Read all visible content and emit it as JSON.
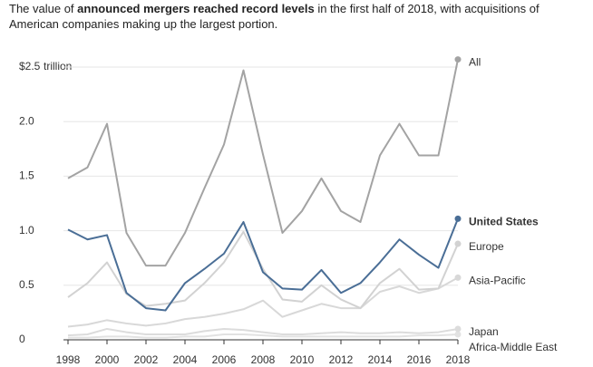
{
  "chart_data": {
    "type": "line",
    "title": [
      "The value of ",
      "announced mergers reached record levels",
      " in the first half of 2018, with acquisitions of American companies making up the largest portion."
    ],
    "y_unit": "trillion",
    "x": [
      1998,
      1999,
      2000,
      2001,
      2002,
      2003,
      2004,
      2005,
      2006,
      2007,
      2008,
      2009,
      2010,
      2011,
      2012,
      2013,
      2014,
      2015,
      2016,
      2017,
      2018
    ],
    "xlim": [
      1998,
      2018
    ],
    "xticks": [
      1998,
      2000,
      2002,
      2004,
      2006,
      2008,
      2010,
      2012,
      2014,
      2016,
      2018
    ],
    "ylim": [
      0,
      2.5
    ],
    "yticks": [
      0,
      0.5,
      {
        "value": 1,
        "label": "1.0"
      },
      1.5,
      {
        "value": 2,
        "label": "2.0"
      },
      {
        "value": 2.5,
        "label": "$2.5"
      }
    ],
    "grid": true,
    "series": [
      {
        "name": "All",
        "color": "#a3a3a3",
        "values": [
          1.48,
          1.58,
          1.98,
          0.98,
          0.68,
          0.68,
          0.98,
          1.39,
          1.79,
          2.47,
          1.7,
          0.98,
          1.18,
          1.48,
          1.18,
          1.08,
          1.69,
          1.98,
          1.69,
          1.69,
          2.57
        ]
      },
      {
        "name": "United States",
        "color": "#4a6e96",
        "bold": true,
        "values": [
          1.01,
          0.92,
          0.96,
          0.43,
          0.29,
          0.27,
          0.52,
          0.65,
          0.79,
          1.08,
          0.62,
          0.47,
          0.46,
          0.64,
          0.43,
          0.52,
          0.71,
          0.92,
          0.78,
          0.66,
          1.11
        ]
      },
      {
        "name": "Europe",
        "color": "#d2d2d2",
        "values": [
          0.39,
          0.52,
          0.71,
          0.42,
          0.31,
          0.33,
          0.36,
          0.52,
          0.71,
          0.99,
          0.65,
          0.37,
          0.35,
          0.5,
          0.37,
          0.29,
          0.52,
          0.65,
          0.46,
          0.47,
          0.88
        ]
      },
      {
        "name": "Asia-Pacific",
        "color": "#d8d8d8",
        "values": [
          0.12,
          0.14,
          0.18,
          0.15,
          0.13,
          0.15,
          0.19,
          0.21,
          0.24,
          0.28,
          0.36,
          0.21,
          0.27,
          0.33,
          0.29,
          0.29,
          0.44,
          0.49,
          0.43,
          0.47,
          0.57
        ]
      },
      {
        "name": "Japan",
        "color": "#dcdcdc",
        "values": [
          0.04,
          0.05,
          0.1,
          0.07,
          0.05,
          0.05,
          0.05,
          0.08,
          0.1,
          0.09,
          0.07,
          0.05,
          0.05,
          0.06,
          0.07,
          0.06,
          0.06,
          0.07,
          0.06,
          0.07,
          0.1
        ]
      },
      {
        "name": "Africa-Middle East",
        "color": "#e2e2e2",
        "values": [
          0.02,
          0.02,
          0.03,
          0.03,
          0.02,
          0.02,
          0.03,
          0.03,
          0.05,
          0.05,
          0.04,
          0.03,
          0.03,
          0.03,
          0.03,
          0.03,
          0.03,
          0.03,
          0.04,
          0.04,
          0.05
        ]
      }
    ]
  }
}
